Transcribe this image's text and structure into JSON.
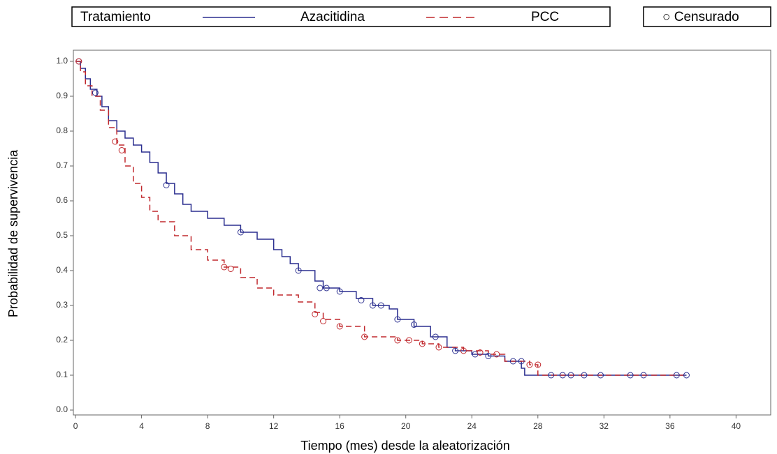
{
  "chart_data": {
    "type": "kaplan-meier",
    "xlabel": "Tiempo (mes) desde la aleatorización",
    "ylabel": "Probabilidad de supervivencia",
    "legend_title": "Tratamiento",
    "censored_label": "○ Censurado",
    "xlim": [
      -0.13,
      42.1
    ],
    "ylim": [
      -0.014,
      1.032
    ],
    "xticks": [
      0,
      4,
      8,
      12,
      16,
      20,
      24,
      28,
      32,
      36,
      40
    ],
    "yticks": [
      {
        "value": 0,
        "label": "0.0"
      },
      0.1,
      0.2,
      0.3,
      0.4,
      0.5,
      0.6,
      0.7,
      0.8,
      0.9,
      {
        "value": 1,
        "label": "1.0"
      }
    ],
    "series": [
      {
        "name": "Azacitidina",
        "color": "#2b2f8f",
        "dashed": false,
        "x": [
          0,
          0.3,
          0.6,
          0.9,
          1.3,
          1.6,
          2.0,
          2.5,
          3.0,
          3.5,
          4.0,
          4.5,
          5.0,
          5.5,
          6.0,
          6.5,
          7.0,
          8.0,
          9.0,
          10.0,
          11.0,
          12.0,
          12.5,
          13.0,
          13.5,
          14.5,
          15.0,
          16.0,
          17.0,
          18.0,
          19.0,
          19.5,
          20.5,
          21.5,
          22.5,
          23.0,
          24.0,
          25.0,
          26.0,
          27.0,
          27.2,
          37.0
        ],
        "values": [
          1.0,
          0.98,
          0.95,
          0.92,
          0.9,
          0.87,
          0.83,
          0.8,
          0.78,
          0.76,
          0.74,
          0.71,
          0.68,
          0.65,
          0.62,
          0.59,
          0.57,
          0.55,
          0.53,
          0.51,
          0.49,
          0.46,
          0.44,
          0.42,
          0.4,
          0.37,
          0.35,
          0.34,
          0.32,
          0.3,
          0.29,
          0.26,
          0.24,
          0.21,
          0.18,
          0.17,
          0.16,
          0.155,
          0.14,
          0.12,
          0.1,
          0.1
        ],
        "censored_x": [
          0.2,
          1.2,
          5.5,
          10.0,
          13.5,
          14.8,
          15.2,
          16.0,
          17.3,
          18.0,
          18.5,
          19.5,
          20.5,
          21.8,
          23.0,
          24.2,
          25.0,
          26.5,
          27.0,
          28.8,
          29.5,
          30.0,
          30.8,
          31.8,
          33.6,
          34.4,
          36.4,
          37.0
        ],
        "censored_values": [
          1.0,
          0.91,
          0.645,
          0.51,
          0.4,
          0.35,
          0.35,
          0.34,
          0.315,
          0.3,
          0.3,
          0.26,
          0.245,
          0.21,
          0.17,
          0.16,
          0.155,
          0.14,
          0.14,
          0.1,
          0.1,
          0.1,
          0.1,
          0.1,
          0.1,
          0.1,
          0.1,
          0.1
        ]
      },
      {
        "name": "PCC",
        "color": "#c0282d",
        "dashed": true,
        "x": [
          0,
          0.3,
          0.6,
          1.0,
          1.5,
          2.0,
          2.5,
          3.0,
          3.5,
          4.0,
          4.5,
          5.0,
          6.0,
          7.0,
          8.0,
          9.0,
          10.0,
          11.0,
          12.0,
          13.5,
          14.5,
          15.0,
          16.0,
          17.5,
          19.5,
          21.0,
          22.0,
          23.5,
          25.0,
          26.0,
          27.5,
          28.0,
          37.0
        ],
        "values": [
          1.0,
          0.97,
          0.93,
          0.9,
          0.86,
          0.81,
          0.76,
          0.7,
          0.65,
          0.61,
          0.57,
          0.54,
          0.5,
          0.46,
          0.43,
          0.41,
          0.38,
          0.35,
          0.33,
          0.31,
          0.28,
          0.26,
          0.24,
          0.21,
          0.2,
          0.19,
          0.18,
          0.17,
          0.16,
          0.14,
          0.13,
          0.1,
          0.1
        ],
        "censored_x": [
          0.2,
          2.4,
          2.8,
          9.0,
          9.4,
          14.5,
          15.0,
          16.0,
          17.5,
          19.5,
          20.2,
          21.0,
          22.0,
          23.5,
          24.5,
          25.5,
          27.5,
          28.0
        ],
        "censored_values": [
          1.0,
          0.77,
          0.745,
          0.41,
          0.405,
          0.275,
          0.255,
          0.24,
          0.21,
          0.2,
          0.2,
          0.19,
          0.18,
          0.17,
          0.165,
          0.16,
          0.13,
          0.13
        ]
      }
    ]
  }
}
